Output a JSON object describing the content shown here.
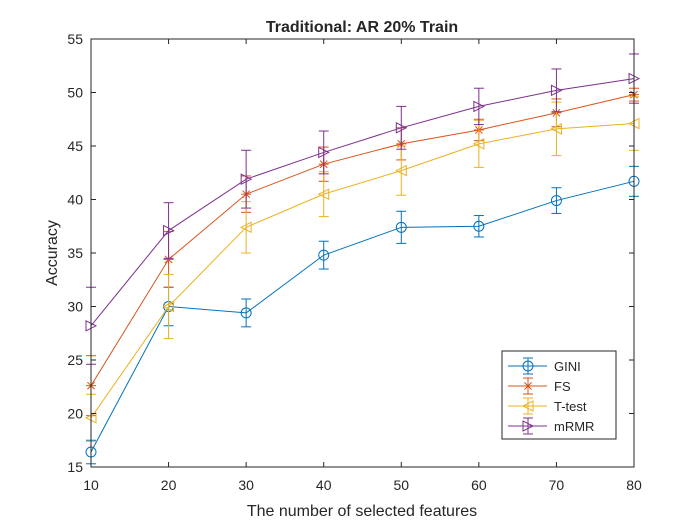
{
  "chart_data": {
    "type": "line",
    "title": "Traditional: AR 20% Train",
    "xlabel": "The number of selected features",
    "ylabel": "Accuracy",
    "x": [
      10,
      20,
      30,
      40,
      50,
      60,
      70,
      80
    ],
    "xlim": [
      10,
      80
    ],
    "ylim": [
      15,
      55
    ],
    "xticks": [
      "10",
      "20",
      "30",
      "40",
      "50",
      "60",
      "70",
      "80"
    ],
    "yticks": [
      "15",
      "20",
      "25",
      "30",
      "35",
      "40",
      "45",
      "50",
      "55"
    ],
    "grid": false,
    "legend_location": "bottom-right",
    "series": [
      {
        "name": "GINI",
        "color": "#0072BD",
        "marker": "circle",
        "values": [
          16.4,
          30.0,
          29.4,
          34.8,
          37.4,
          37.5,
          39.9,
          41.7
        ],
        "errors": [
          1.1,
          1.8,
          1.3,
          1.3,
          1.5,
          1.0,
          1.2,
          1.4
        ]
      },
      {
        "name": "FS",
        "color": "#D95319",
        "marker": "asterisk",
        "values": [
          22.6,
          34.4,
          40.5,
          43.3,
          45.2,
          46.5,
          48.1,
          49.8
        ],
        "errors": [
          2.8,
          2.6,
          1.7,
          1.6,
          1.5,
          1.0,
          1.3,
          0.6
        ]
      },
      {
        "name": "T-test",
        "color": "#EDB120",
        "marker": "triangle-left",
        "values": [
          19.6,
          30.0,
          37.4,
          40.5,
          42.7,
          45.2,
          46.6,
          47.1
        ],
        "errors": [
          2.2,
          3.0,
          2.4,
          2.1,
          2.3,
          2.2,
          2.5,
          2.5
        ]
      },
      {
        "name": "mRMR",
        "color": "#7E2F8E",
        "marker": "triangle-right",
        "values": [
          28.2,
          37.1,
          41.9,
          44.4,
          46.7,
          48.7,
          50.2,
          51.3
        ],
        "errors": [
          3.6,
          2.6,
          2.7,
          2.0,
          2.0,
          1.7,
          2.0,
          2.3
        ]
      }
    ]
  }
}
